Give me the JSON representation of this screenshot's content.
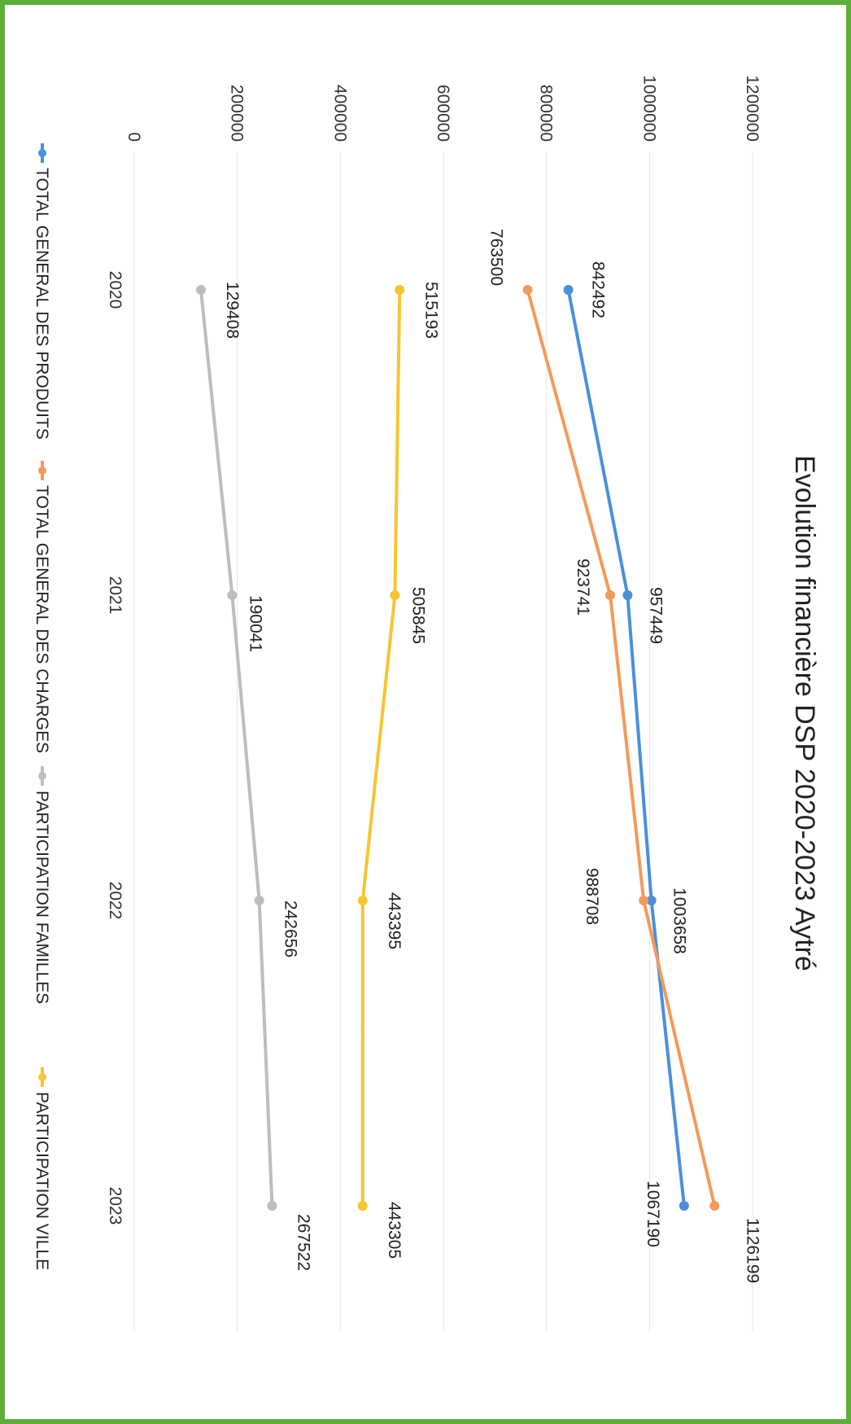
{
  "chart_data": {
    "type": "line",
    "title": "Evolution financière DSP 2020-2023 Aytré",
    "categories": [
      "2020",
      "2021",
      "2022",
      "2023"
    ],
    "ylim": [
      0,
      1200000
    ],
    "yticks": [
      "0",
      "200000",
      "400000",
      "600000",
      "800000",
      "1000000",
      "1200000"
    ],
    "grid": true,
    "legend_position": "bottom",
    "series": [
      {
        "name": "TOTAL GENERAL DES PRODUITS",
        "color": "#4a90d9",
        "values": [
          842492,
          957449,
          1003658,
          1067190
        ]
      },
      {
        "name": "TOTAL GENERAL DES CHARGES",
        "color": "#f39a5b",
        "values": [
          763500,
          923741,
          988708,
          1126199
        ]
      },
      {
        "name": "PARTICIPATION FAMILLES",
        "color": "#bdbdbd",
        "values": [
          129408,
          190041,
          242656,
          267522
        ]
      },
      {
        "name": "PARTICIPATION VILLE",
        "color": "#f7c530",
        "values": [
          515193,
          505845,
          443395,
          443305
        ]
      }
    ]
  }
}
